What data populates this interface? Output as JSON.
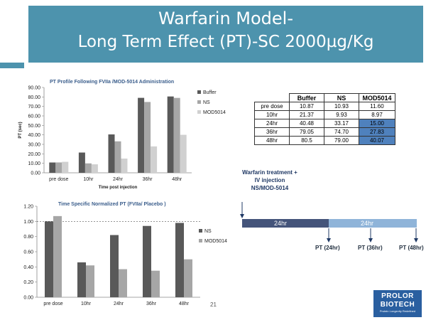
{
  "slide": {
    "title_line1": "Warfarin Model-",
    "title_line2": "Long Term Effect (PT)-SC  2000µg/Kg",
    "page_number": "21"
  },
  "colors": {
    "title_bar": "#4d93ad",
    "series_dark": "#595959",
    "series_mid": "#a6a6a6",
    "series_light": "#d0d0d0",
    "table_highlight": "#4f81bd",
    "timeline_dark": "#44547a",
    "timeline_light": "#8fb4d9"
  },
  "chart_data": [
    {
      "type": "bar",
      "title": "PT Profile Following FVIIa /MOD-5014 Administration",
      "xlabel": "Time post injection",
      "ylabel": "PT (sec)",
      "categories": [
        "pre dose",
        "10hr",
        "24hr",
        "36hr",
        "48hr"
      ],
      "series": [
        {
          "name": "Buffer",
          "values": [
            10.87,
            21.37,
            40.48,
            79.05,
            80.5
          ]
        },
        {
          "name": "NS",
          "values": [
            10.93,
            9.93,
            33.17,
            74.7,
            79.0
          ]
        },
        {
          "name": "MOD5014",
          "values": [
            11.6,
            8.97,
            15.0,
            27.83,
            40.07
          ]
        }
      ],
      "ylim": [
        0,
        90
      ],
      "yticks": [
        "0.00",
        "10.00",
        "20.00",
        "30.00",
        "40.00",
        "50.00",
        "60.00",
        "70.00",
        "80.00",
        "90.00"
      ],
      "legend": "right",
      "grid": false
    },
    {
      "type": "bar",
      "title": "Time Specific Normalized PT (FVIIa/ Placebo )",
      "xlabel": "",
      "ylabel": "",
      "categories": [
        "pre dose",
        "10hr",
        "24hr",
        "36hr",
        "48hr"
      ],
      "series": [
        {
          "name": "NS",
          "values": [
            1.0,
            0.46,
            0.82,
            0.94,
            0.98
          ]
        },
        {
          "name": "MOD5014",
          "values": [
            1.07,
            0.42,
            0.37,
            0.35,
            0.5
          ]
        }
      ],
      "ylim": [
        0,
        1.2
      ],
      "yticks": [
        "0.00",
        "0.20",
        "0.40",
        "0.60",
        "0.80",
        "1.00",
        "1.20"
      ],
      "reference_line": 1.0,
      "legend": "right",
      "grid": false
    }
  ],
  "table": {
    "headers": [
      "",
      "Buffer",
      "NS",
      "MOD5014"
    ],
    "rows": [
      [
        "pre dose",
        "10.87",
        "10.93",
        "11.60"
      ],
      [
        "10hr",
        "21.37",
        "9.93",
        "8.97"
      ],
      [
        "24hr",
        "40.48",
        "33.17",
        "15.00"
      ],
      [
        "36hr",
        "79.05",
        "74.70",
        "27.83"
      ],
      [
        "48hr",
        "80.5",
        "79.00",
        "40.07"
      ]
    ]
  },
  "timeline": {
    "treatment_line1": "Warfarin treatment +",
    "treatment_line2": "IV injection",
    "treatment_line3": "NS/MOD-5014",
    "seg1": "24hr",
    "seg2": "24hr",
    "pt1": "PT (24hr)",
    "pt2": "PT (36hr)",
    "pt3": "PT (48hr)"
  },
  "logo": {
    "line1": "PROLOR",
    "line2": "BIOTECH",
    "tagline": "Protein Longevity Redefined"
  }
}
